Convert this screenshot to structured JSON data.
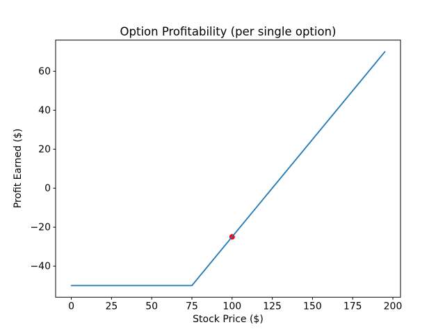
{
  "figure": {
    "background": "#ffffff"
  },
  "chart_data": {
    "type": "line",
    "title": "Option Profitability (per single option)",
    "xlabel": "Stock Price ($)",
    "ylabel": "Profit Earned ($)",
    "xlim": [
      -9.75,
      204.75
    ],
    "ylim": [
      -56,
      76
    ],
    "xticks": [
      0,
      25,
      50,
      75,
      100,
      125,
      150,
      175,
      200
    ],
    "yticks": [
      -40,
      -20,
      0,
      20,
      40,
      60
    ],
    "grid": false,
    "legend": null,
    "axes_color": "#000000",
    "series": [
      {
        "name": "breakeven-marker",
        "type": "scatter",
        "color": "#ff0000",
        "marker_radius": 4,
        "x": [
          100
        ],
        "y": [
          -25
        ]
      },
      {
        "name": "profit-line",
        "type": "line",
        "color": "#1f77b4",
        "line_width": 1.8,
        "x": [
          0,
          75,
          195
        ],
        "y": [
          -50,
          -50,
          70
        ]
      }
    ]
  }
}
